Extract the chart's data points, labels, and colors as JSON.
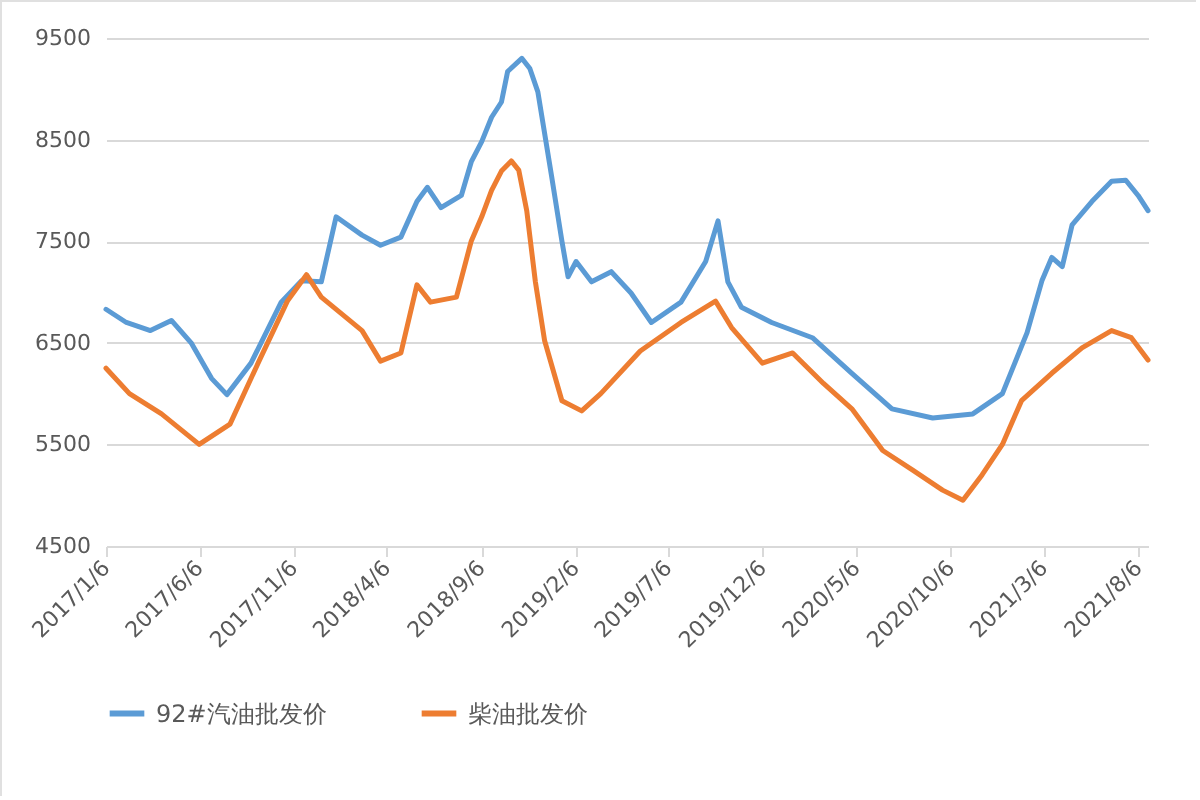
{
  "chart_data": {
    "type": "line",
    "ylim": [
      4500,
      9500
    ],
    "yticks": [
      4500,
      5500,
      6500,
      7500,
      8500,
      9500
    ],
    "xlim": [
      "2017-01-06",
      "2021-08-22"
    ],
    "xticks": [
      {
        "value": "2017-01-06",
        "label": "2017/1/6"
      },
      {
        "value": "2017-06-06",
        "label": "2017/6/6"
      },
      {
        "value": "2017-11-06",
        "label": "2017/11/6"
      },
      {
        "value": "2018-04-06",
        "label": "2018/4/6"
      },
      {
        "value": "2018-09-06",
        "label": "2018/9/6"
      },
      {
        "value": "2019-02-06",
        "label": "2019/2/6"
      },
      {
        "value": "2019-07-06",
        "label": "2019/7/6"
      },
      {
        "value": "2019-12-06",
        "label": "2019/12/6"
      },
      {
        "value": "2020-05-06",
        "label": "2020/5/6"
      },
      {
        "value": "2020-10-06",
        "label": "2020/10/6"
      },
      {
        "value": "2021-03-06",
        "label": "2021/3/6"
      },
      {
        "value": "2021-08-06",
        "label": "2021/8/6"
      }
    ],
    "grid": "y",
    "legend": "bottom",
    "line_style": "solid",
    "marker": "none",
    "series": [
      {
        "name": "92#汽油批发价",
        "color": "#5b9bd5",
        "x": [
          "2017-01-06",
          "2017-02-08",
          "2017-03-19",
          "2017-04-22",
          "2017-05-24",
          "2017-06-26",
          "2017-07-21",
          "2017-08-29",
          "2017-10-17",
          "2017-11-19",
          "2017-12-21",
          "2018-01-14",
          "2018-02-25",
          "2018-03-27",
          "2018-04-29",
          "2018-05-25",
          "2018-06-11",
          "2018-07-03",
          "2018-08-05",
          "2018-08-21",
          "2018-09-07",
          "2018-09-23",
          "2018-10-09",
          "2018-10-19",
          "2018-11-11",
          "2018-11-24",
          "2018-12-07",
          "2018-12-29",
          "2019-01-15",
          "2019-01-25",
          "2019-02-07",
          "2019-03-04",
          "2019-04-05",
          "2019-05-07",
          "2019-06-09",
          "2019-07-27",
          "2019-09-05",
          "2019-09-25",
          "2019-10-11",
          "2019-11-02",
          "2019-12-21",
          "2020-02-25",
          "2020-04-29",
          "2020-07-03",
          "2020-09-07",
          "2020-11-11",
          "2020-12-29",
          "2021-02-07",
          "2021-03-03",
          "2021-03-19",
          "2021-04-05",
          "2021-04-21",
          "2021-05-23",
          "2021-06-24",
          "2021-07-17",
          "2021-08-06",
          "2021-08-22"
        ],
        "values": [
          6830,
          6700,
          6620,
          6720,
          6500,
          6150,
          5990,
          6300,
          6900,
          7110,
          7100,
          7740,
          7560,
          7460,
          7540,
          7890,
          8030,
          7830,
          7950,
          8280,
          8480,
          8720,
          8870,
          9170,
          9300,
          9200,
          8970,
          8150,
          7500,
          7150,
          7300,
          7100,
          7200,
          6990,
          6700,
          6900,
          7300,
          7700,
          7100,
          6850,
          6700,
          6550,
          6200,
          5850,
          5760,
          5800,
          6000,
          6600,
          7110,
          7340,
          7250,
          7660,
          7890,
          8090,
          8100,
          7950,
          7800
        ]
      },
      {
        "name": "柴油批发价",
        "color": "#ed7d31",
        "x": [
          "2017-01-06",
          "2017-02-13",
          "2017-04-06",
          "2017-06-06",
          "2017-07-26",
          "2017-09-11",
          "2017-10-27",
          "2017-11-27",
          "2017-12-21",
          "2018-02-25",
          "2018-03-27",
          "2018-04-29",
          "2018-05-25",
          "2018-06-16",
          "2018-07-28",
          "2018-08-21",
          "2018-09-07",
          "2018-09-23",
          "2018-10-09",
          "2018-10-25",
          "2018-11-06",
          "2018-11-19",
          "2018-12-03",
          "2018-12-18",
          "2019-01-15",
          "2019-02-16",
          "2019-03-19",
          "2019-05-22",
          "2019-07-27",
          "2019-09-21",
          "2019-10-17",
          "2019-12-06",
          "2020-01-24",
          "2020-03-14",
          "2020-04-29",
          "2020-06-18",
          "2020-08-05",
          "2020-09-23",
          "2020-10-26",
          "2020-11-26",
          "2020-12-29",
          "2021-01-29",
          "2021-03-19",
          "2021-05-07",
          "2021-06-24",
          "2021-07-26",
          "2021-08-22"
        ],
        "values": [
          6250,
          6000,
          5800,
          5500,
          5700,
          6320,
          6910,
          7170,
          6950,
          6620,
          6320,
          6400,
          7070,
          6900,
          6950,
          7500,
          7740,
          8000,
          8190,
          8290,
          8200,
          7800,
          7100,
          6520,
          5930,
          5830,
          6000,
          6420,
          6700,
          6910,
          6650,
          6300,
          6400,
          6100,
          5850,
          5440,
          5250,
          5050,
          4950,
          5200,
          5500,
          5930,
          6200,
          6450,
          6620,
          6550,
          6330
        ]
      }
    ]
  }
}
